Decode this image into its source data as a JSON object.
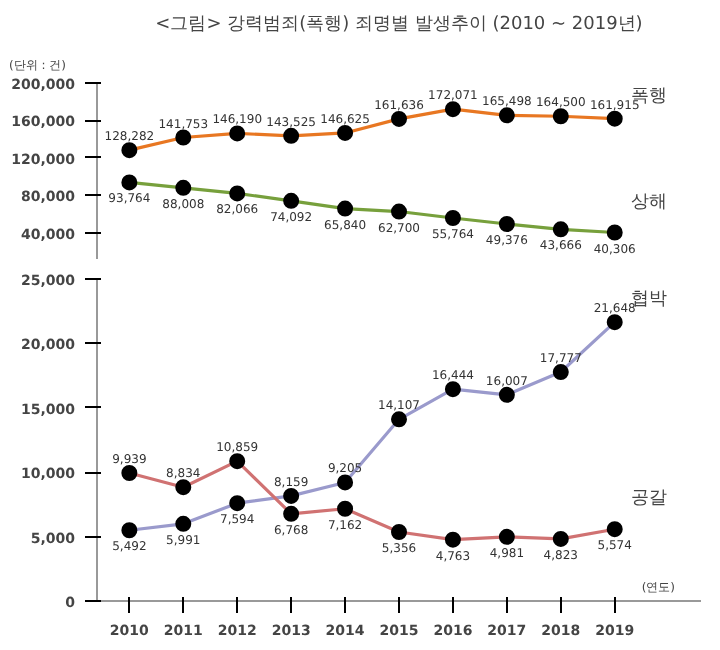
{
  "chart_data": [
    {
      "type": "line",
      "title": "<그림> 강력범죄(폭행) 죄명별 발생추이 (2010 ~ 2019년)",
      "ylabel": "(단위 : 건)",
      "categories": [
        "2010",
        "2011",
        "2012",
        "2013",
        "2014",
        "2015",
        "2016",
        "2017",
        "2018",
        "2019"
      ],
      "series": [
        {
          "name": "폭행",
          "color": "#e87722",
          "values": [
            128282,
            141753,
            146190,
            143525,
            146625,
            161636,
            172071,
            165498,
            164500,
            161915
          ],
          "value_labels": [
            "128,282",
            "141,753",
            "146,190",
            "143,525",
            "146,625",
            "161,636",
            "172,071",
            "165,498",
            "164,500",
            "161,915"
          ]
        },
        {
          "name": "상해",
          "color": "#77a03c",
          "values": [
            93764,
            88008,
            82066,
            74092,
            65840,
            62700,
            55764,
            49376,
            43666,
            40306
          ],
          "value_labels": [
            "93,764",
            "88,008",
            "82,066",
            "74,092",
            "65,840",
            "62,700",
            "55,764",
            "49,376",
            "43,666",
            "40,306"
          ]
        }
      ],
      "ylim": [
        12000,
        200000
      ],
      "yticks": [
        {
          "value": 40000,
          "label": "40,000"
        },
        {
          "value": 80000,
          "label": "80,000"
        },
        {
          "value": 120000,
          "label": "120,000"
        },
        {
          "value": 160000,
          "label": "160,000"
        },
        {
          "value": 200000,
          "label": "200,000"
        }
      ],
      "tick_labels": "y",
      "marker": "circle",
      "line_style": "solid",
      "grid": false
    },
    {
      "type": "line",
      "xlabel": "(연도)",
      "categories": [
        "2010",
        "2011",
        "2012",
        "2013",
        "2014",
        "2015",
        "2016",
        "2017",
        "2018",
        "2019"
      ],
      "series": [
        {
          "name": "협박",
          "color": "#9a9acc",
          "values": [
            5492,
            5991,
            7594,
            8159,
            9205,
            14107,
            16444,
            16007,
            17777,
            21648
          ],
          "value_labels": [
            "5,492",
            "5,991",
            "7,594",
            "8,159",
            "9,205",
            "14,107",
            "16,444",
            "16,007",
            "17,777",
            "21,648"
          ]
        },
        {
          "name": "공갈",
          "color": "#d07272",
          "values": [
            9939,
            8834,
            10859,
            6768,
            7162,
            5356,
            4763,
            4981,
            4823,
            5574
          ],
          "value_labels": [
            "9,939",
            "8,834",
            "10,859",
            "6,768",
            "7,162",
            "5,356",
            "4,763",
            "4,981",
            "4,823",
            "5,574"
          ]
        }
      ],
      "ylim": [
        0,
        25000
      ],
      "yticks": [
        {
          "value": 0,
          "label": "0"
        },
        {
          "value": 5000,
          "label": "5,000"
        },
        {
          "value": 10000,
          "label": "10,000"
        },
        {
          "value": 15000,
          "label": "15,000"
        },
        {
          "value": 20000,
          "label": "20,000"
        },
        {
          "value": 25000,
          "label": "25,000"
        }
      ],
      "marker": "circle",
      "line_style": "solid",
      "grid": false
    }
  ]
}
